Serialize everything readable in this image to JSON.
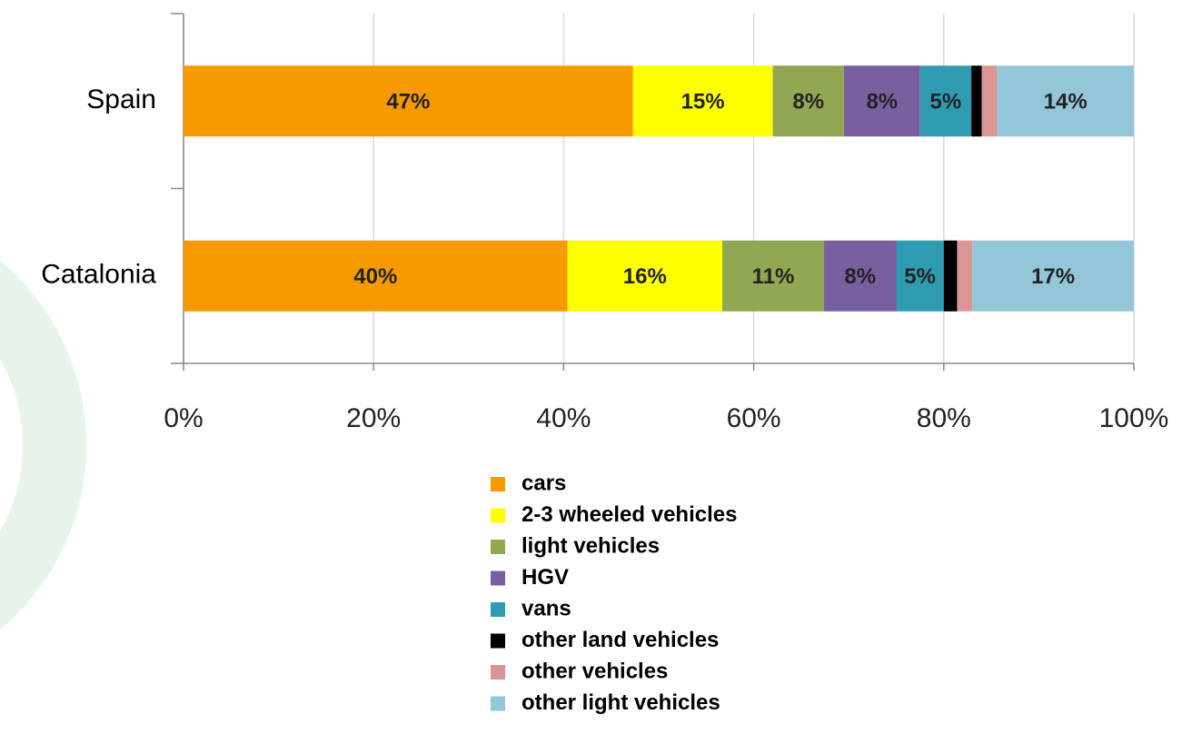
{
  "chart_data": {
    "type": "stacked_barh",
    "categories": [
      "Spain",
      "Catalonia"
    ],
    "series": [
      {
        "name": "cars",
        "color": "#f79a00",
        "values": [
          47.3,
          40.4
        ],
        "value_labels": [
          "47%",
          "40%"
        ]
      },
      {
        "name": "2-3 wheeled vehicles",
        "color": "#ffff00",
        "values": [
          14.7,
          16.3
        ],
        "value_labels": [
          "15%",
          "16%"
        ]
      },
      {
        "name": "light vehicles",
        "color": "#92a752",
        "values": [
          7.5,
          10.7
        ],
        "value_labels": [
          "8%",
          "11%"
        ]
      },
      {
        "name": "HGV",
        "color": "#7a5fa0",
        "values": [
          8.0,
          7.6
        ],
        "value_labels": [
          "8%",
          "8%"
        ]
      },
      {
        "name": "vans",
        "color": "#2f9bb0",
        "values": [
          5.4,
          5.0
        ],
        "value_labels": [
          "5%",
          "5%"
        ]
      },
      {
        "name": "other land vehicles",
        "color": "#000000",
        "values": [
          1.1,
          1.4
        ]
      },
      {
        "name": "other vehicles",
        "color": "#d99694",
        "values": [
          1.6,
          1.6
        ]
      },
      {
        "name": "other light vehicles",
        "color": "#93c6d9",
        "values": [
          14.4,
          17.0
        ],
        "value_labels": [
          "14%",
          "17%"
        ]
      }
    ],
    "xlim": [
      0,
      100
    ],
    "xticks": [
      {
        "value": 0,
        "label": "0%"
      },
      {
        "value": 20,
        "label": "20%"
      },
      {
        "value": 40,
        "label": "40%"
      },
      {
        "value": 60,
        "label": "60%"
      },
      {
        "value": 80,
        "label": "80%"
      },
      {
        "value": 100,
        "label": "100%"
      }
    ],
    "grid": true
  }
}
